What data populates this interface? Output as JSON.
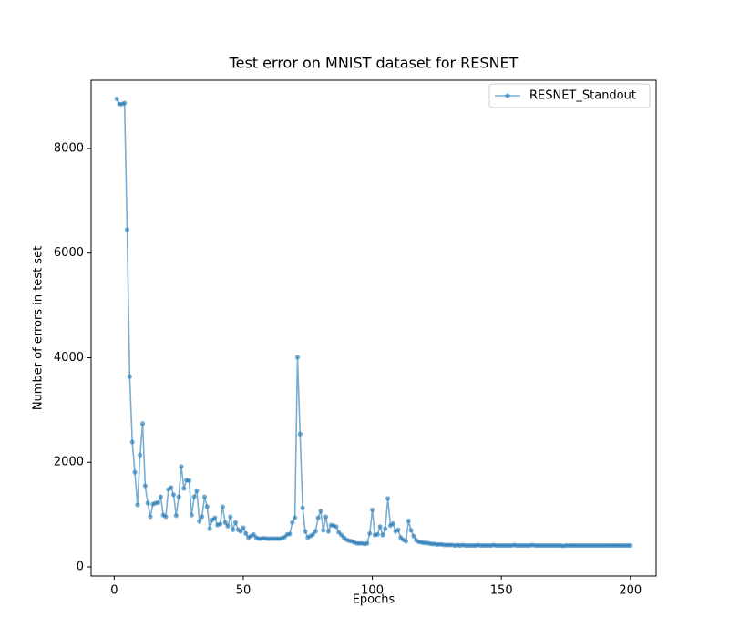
{
  "chart_data": {
    "type": "line",
    "title": "Test error on MNIST dataset for RESNET",
    "xlabel": "Epochs",
    "ylabel": "Number of errors in test set",
    "x": [
      1,
      2,
      3,
      4,
      5,
      6,
      7,
      8,
      9,
      10,
      11,
      12,
      13,
      14,
      15,
      16,
      17,
      18,
      19,
      20,
      21,
      22,
      23,
      24,
      25,
      26,
      27,
      28,
      29,
      30,
      31,
      32,
      33,
      34,
      35,
      36,
      37,
      38,
      39,
      40,
      41,
      42,
      43,
      44,
      45,
      46,
      47,
      48,
      49,
      50,
      51,
      52,
      53,
      54,
      55,
      56,
      57,
      58,
      59,
      60,
      61,
      62,
      63,
      64,
      65,
      66,
      67,
      68,
      69,
      70,
      71,
      72,
      73,
      74,
      75,
      76,
      77,
      78,
      79,
      80,
      81,
      82,
      83,
      84,
      85,
      86,
      87,
      88,
      89,
      90,
      91,
      92,
      93,
      94,
      95,
      96,
      97,
      98,
      99,
      100,
      101,
      102,
      103,
      104,
      105,
      106,
      107,
      108,
      109,
      110,
      111,
      112,
      113,
      114,
      115,
      116,
      117,
      118,
      119,
      120,
      121,
      122,
      123,
      124,
      125,
      126,
      127,
      128,
      129,
      130,
      131,
      132,
      133,
      134,
      135,
      136,
      137,
      138,
      139,
      140,
      141,
      142,
      143,
      144,
      145,
      146,
      147,
      148,
      149,
      150,
      151,
      152,
      153,
      154,
      155,
      156,
      157,
      158,
      159,
      160,
      161,
      162,
      163,
      164,
      165,
      166,
      167,
      168,
      169,
      170,
      171,
      172,
      173,
      174,
      175,
      176,
      177,
      178,
      179,
      180,
      181,
      182,
      183,
      184,
      185,
      186,
      187,
      188,
      189,
      190,
      191,
      192,
      193,
      194,
      195,
      196,
      197,
      198,
      199,
      200
    ],
    "series": [
      {
        "name": "RESNET_Standout",
        "color": "#1f77b4",
        "values": [
          8950,
          8850,
          8850,
          8870,
          6450,
          3640,
          2390,
          1810,
          1185,
          2140,
          2740,
          1550,
          1220,
          960,
          1200,
          1220,
          1230,
          1340,
          990,
          960,
          1480,
          1520,
          1380,
          980,
          1340,
          1920,
          1500,
          1660,
          1650,
          990,
          1340,
          1460,
          870,
          960,
          1340,
          1150,
          730,
          900,
          940,
          800,
          820,
          1150,
          850,
          780,
          960,
          710,
          850,
          710,
          680,
          750,
          640,
          560,
          590,
          620,
          560,
          540,
          540,
          550,
          540,
          540,
          540,
          540,
          540,
          540,
          550,
          570,
          620,
          630,
          850,
          940,
          4010,
          2540,
          1130,
          680,
          560,
          590,
          620,
          680,
          940,
          1070,
          700,
          960,
          680,
          800,
          790,
          770,
          660,
          610,
          560,
          520,
          500,
          490,
          470,
          450,
          450,
          450,
          440,
          450,
          640,
          1090,
          610,
          620,
          770,
          610,
          730,
          1310,
          790,
          830,
          680,
          710,
          560,
          520,
          490,
          880,
          700,
          590,
          510,
          480,
          470,
          460,
          460,
          450,
          440,
          440,
          430,
          430,
          430,
          420,
          420,
          420,
          420,
          410,
          420,
          410,
          420,
          410,
          410,
          410,
          410,
          410,
          420,
          410,
          410,
          410,
          410,
          410,
          420,
          410,
          410,
          410,
          410,
          410,
          410,
          410,
          420,
          410,
          410,
          410,
          410,
          410,
          410,
          420,
          410,
          410,
          410,
          410,
          410,
          410,
          410,
          410,
          410,
          410,
          410,
          400,
          410,
          410,
          410,
          410,
          410,
          410,
          410,
          410,
          410,
          410,
          410,
          410,
          410,
          410,
          410,
          410,
          410,
          410,
          410,
          410,
          410,
          410,
          410,
          410,
          410,
          410
        ]
      }
    ],
    "xlim": [
      -8.95,
      209.95
    ],
    "ylim": [
      -174,
      9306
    ],
    "xticks": [
      0,
      50,
      100,
      150,
      200
    ],
    "yticks": [
      0,
      2000,
      4000,
      6000,
      8000
    ],
    "legend": "upper right"
  }
}
